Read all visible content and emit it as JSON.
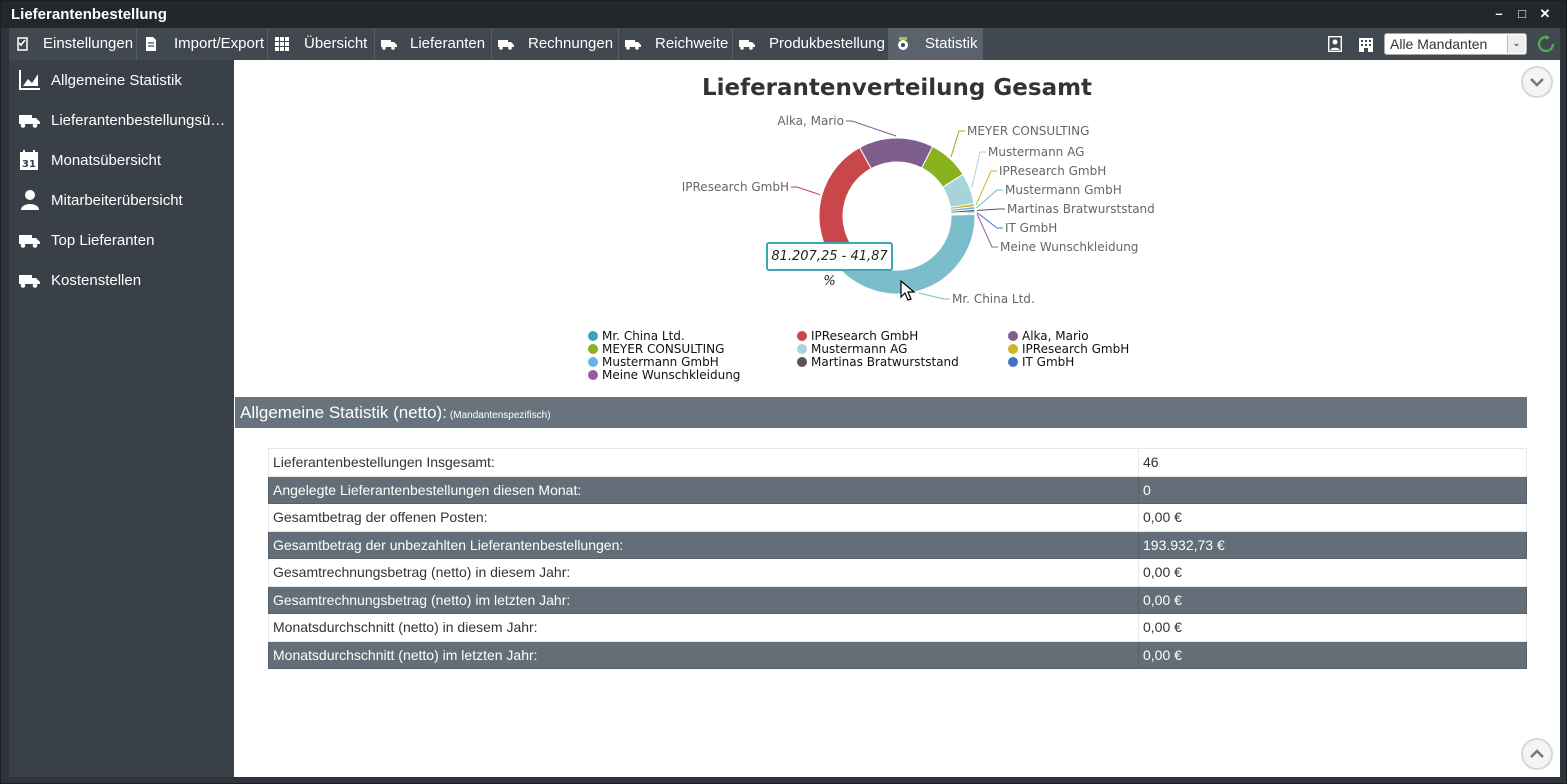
{
  "window": {
    "title": "Lieferantenbestellung"
  },
  "menu": [
    {
      "label": "Einstellungen",
      "icon": "checklist-icon"
    },
    {
      "label": "Import/Export",
      "icon": "document-icon"
    },
    {
      "label": "Übersicht",
      "icon": "grid-icon"
    },
    {
      "label": "Lieferanten",
      "icon": "truck-icon"
    },
    {
      "label": "Rechnungen",
      "icon": "truck-icon"
    },
    {
      "label": "Reichweite",
      "icon": "truck-icon"
    },
    {
      "label": "Produkbestellung",
      "icon": "truck-icon"
    },
    {
      "label": "Statistik",
      "icon": "statistics-icon",
      "active": true
    }
  ],
  "mandant": {
    "selected": "Alle Mandanten"
  },
  "sidebar": {
    "items": [
      {
        "label": "Allgemeine Statistik",
        "icon": "chart-icon"
      },
      {
        "label": "Lieferantenbestellungsübersicht",
        "icon": "truck-icon"
      },
      {
        "label": "Monatsübersicht",
        "icon": "calendar-icon"
      },
      {
        "label": "Mitarbeiterübersicht",
        "icon": "user-icon"
      },
      {
        "label": "Top Lieferanten",
        "icon": "truck-icon"
      },
      {
        "label": "Kostenstellen",
        "icon": "truck-icon"
      }
    ]
  },
  "chart_data": {
    "type": "pie",
    "title": "Lieferantenverteilung Gesamt",
    "donut": true,
    "categories": [
      "Mr. China Ltd.",
      "IPResearch GmbH",
      "Alka, Mario",
      "MEYER CONSULTING",
      "Mustermann AG",
      "IPResearch GmbH",
      "Mustermann GmbH",
      "Martinas Bratwurststand",
      "IT GmbH",
      "Meine Wunschkleidung"
    ],
    "values": [
      41.87,
      25.5,
      15.5,
      8.5,
      6.4,
      0.6,
      0.6,
      0.5,
      0.3,
      0.23
    ],
    "colors": [
      "#7bbdcb",
      "#c9474a",
      "#7e5e8c",
      "#8ab21f",
      "#a7d4da",
      "#c9b42a",
      "#6ab5e0",
      "#555555",
      "#4472c4",
      "#9b5aa8"
    ],
    "legend_colors": [
      "#3aa6b9",
      "#c9474a",
      "#7e5e8c",
      "#8ab21f",
      "#a7d4da",
      "#c9b42a",
      "#6ab5e0",
      "#555555",
      "#4472c4",
      "#9b5aa8"
    ],
    "legend_position": "bottom",
    "tooltip": "81.207,25 - 41,87 %"
  },
  "stats": {
    "title": "Allgemeine Statistik (netto):",
    "subtitle": "(Mandantenspezifisch)",
    "rows": [
      {
        "label": "Lieferantenbestellungen Insgesamt:",
        "value": "46"
      },
      {
        "label": "Angelegte Lieferantenbestellungen diesen Monat:",
        "value": "0"
      },
      {
        "label": "Gesamtbetrag der offenen Posten:",
        "value": "0,00 €"
      },
      {
        "label": "Gesamtbetrag der unbezahlten Lieferantenbestellungen:",
        "value": "193.932,73 €"
      },
      {
        "label": "Gesamtrechnungsbetrag (netto) in diesem Jahr:",
        "value": "0,00 €"
      },
      {
        "label": "Gesamtrechnungsbetrag (netto) im letzten Jahr:",
        "value": "0,00 €"
      },
      {
        "label": "Monatsdurchschnitt (netto) in diesem Jahr:",
        "value": "0,00 €"
      },
      {
        "label": "Monatsdurchschnitt (netto) im letzten Jahr:",
        "value": "0,00 €"
      }
    ]
  }
}
